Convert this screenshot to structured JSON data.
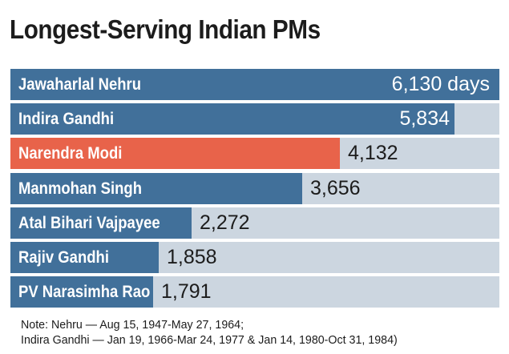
{
  "title": "Longest-Serving Indian PMs",
  "colors": {
    "default_bar": "#41709a",
    "highlight_bar": "#e8634a",
    "track": "#ccd6e0"
  },
  "chart_data": {
    "type": "bar",
    "orientation": "horizontal",
    "title": "Longest-Serving Indian PMs",
    "xlim": [
      0,
      6130
    ],
    "categories": [
      "Jawaharlal Nehru",
      "Indira Gandhi",
      "Narendra Modi",
      "Manmohan Singh",
      "Atal Bihari Vajpayee",
      "Rajiv Gandhi",
      "PV Narasimha Rao"
    ],
    "values": [
      6130,
      5834,
      4132,
      3656,
      2272,
      1858,
      1791
    ],
    "value_labels": [
      "6,130 days",
      "5,834",
      "4,132",
      "3,656",
      "2,272",
      "1,858",
      "1,791"
    ],
    "highlight": "Narendra Modi"
  },
  "notes": [
    "Note: Nehru — Aug 15, 1947-May 27, 1964;",
    "Indira Gandhi — Jan 19, 1966-Mar 24, 1977 & Jan 14, 1980-Oct 31, 1984)"
  ]
}
